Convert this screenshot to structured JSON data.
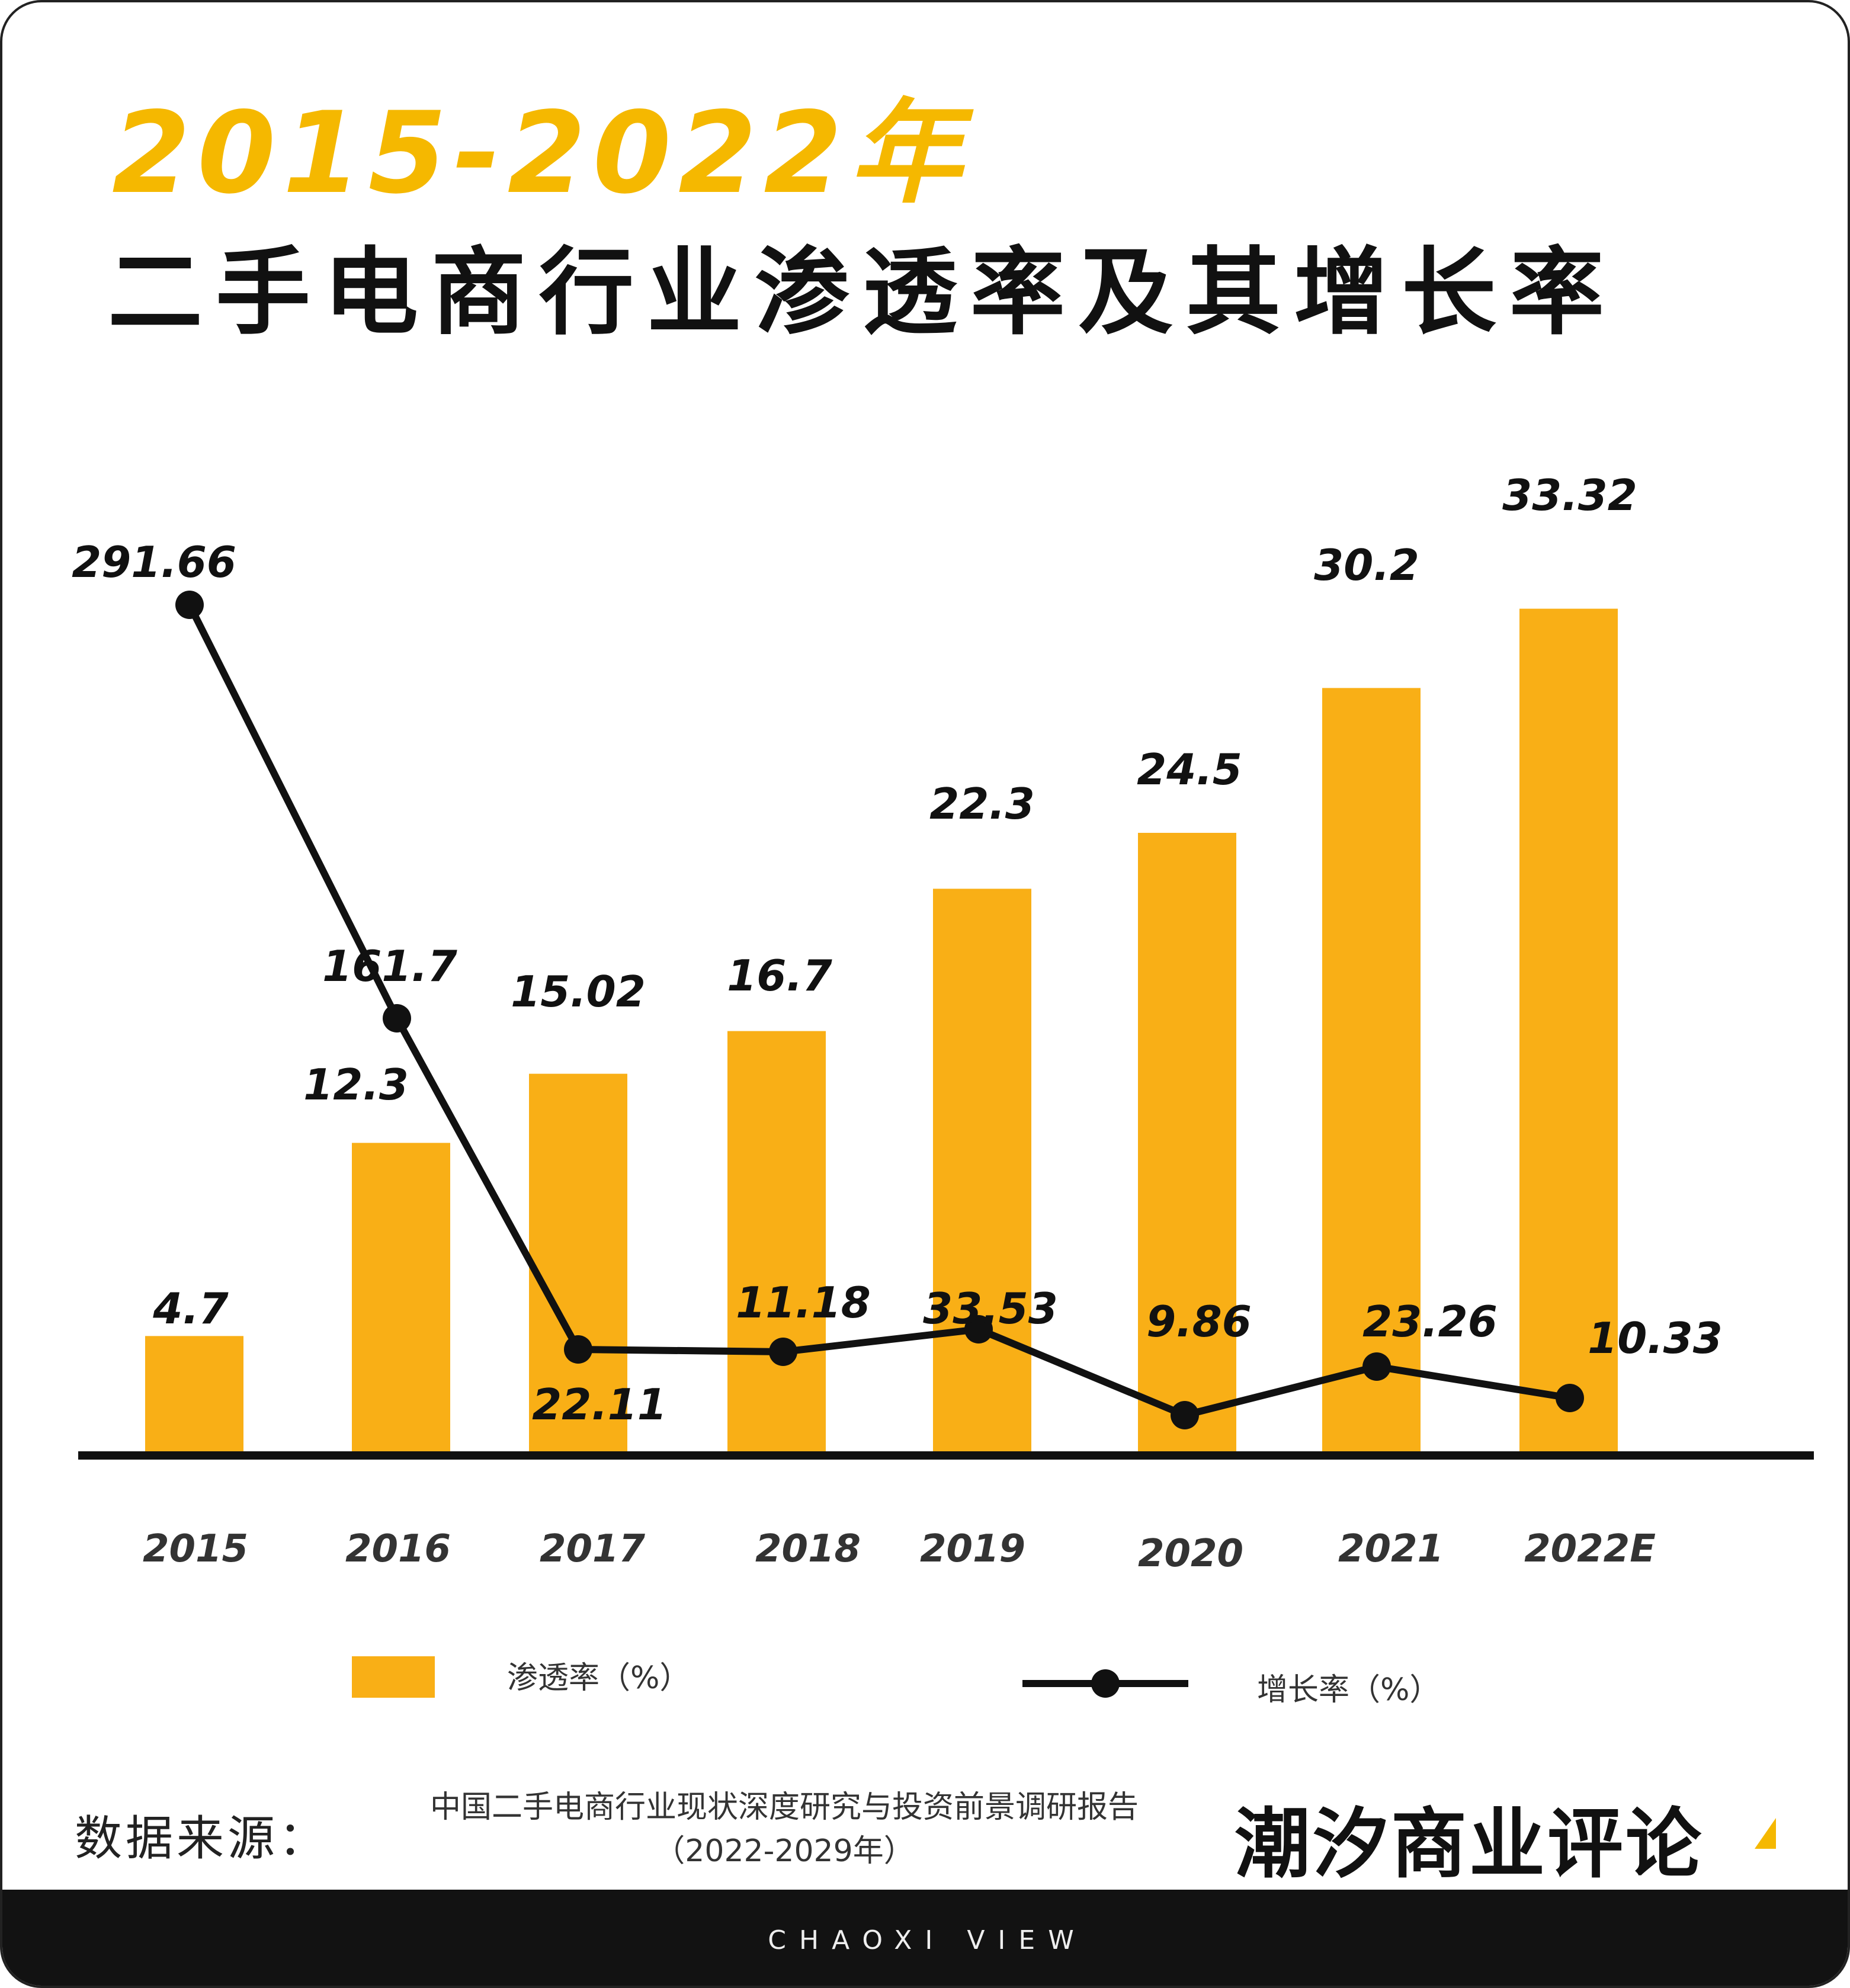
{
  "title_years": "2015-2022年",
  "title_main": "二手电商行业渗透率及其增长率",
  "chart_data": {
    "type": "bar",
    "categories": [
      "2015",
      "2016",
      "2017",
      "2018",
      "2019",
      "2020",
      "2021",
      "2022E"
    ],
    "series": [
      {
        "name": "渗透率（%）",
        "type": "bar",
        "values": [
          4.7,
          12.3,
          15.02,
          16.7,
          22.3,
          24.5,
          30.2,
          33.32
        ]
      },
      {
        "name": "增长率（%）",
        "type": "line",
        "values": [
          291.66,
          161.7,
          22.11,
          11.18,
          33.53,
          9.86,
          23.26,
          10.33
        ]
      }
    ],
    "bar_color": "#F9AF16",
    "line_color": "#111111"
  },
  "legend": {
    "bar_label": "渗透率（%）",
    "line_label": "增长率（%）"
  },
  "source": {
    "label": "数据来源：",
    "line1": "中国二手电商行业现状深度研究与投资前景调研报告",
    "line2": "（2022-2029年）"
  },
  "brand": "潮汐商业评论",
  "footer": "CHAOXI VIEW"
}
